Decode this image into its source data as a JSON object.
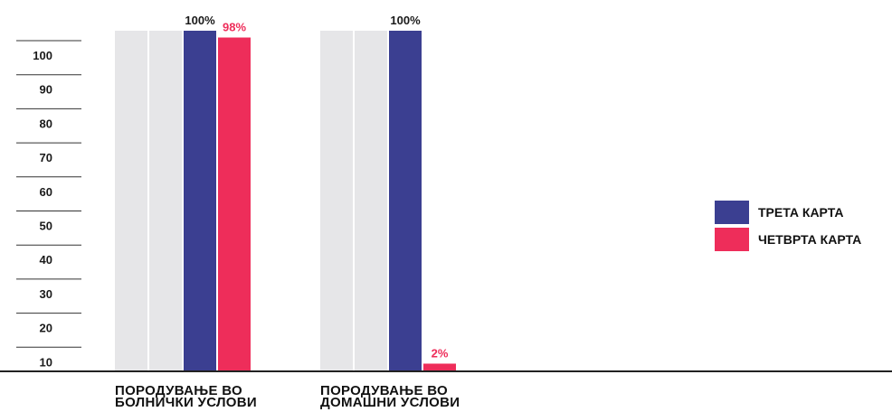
{
  "chart_data": {
    "type": "bar",
    "categories": [
      [
        "ПОРОДУВАЊЕ ВО",
        "БОЛНИЧКИ УСЛОВИ"
      ],
      [
        "ПОРОДУВАЊЕ ВО",
        "ДОМАШНИ УСЛОВИ"
      ]
    ],
    "series": [
      {
        "name": "ТРЕТА КАРТА",
        "color": "#3b3f91",
        "values": [
          100,
          100
        ],
        "labels": [
          "100%",
          "100%"
        ]
      },
      {
        "name": "ЧЕТВРТА КАРТА",
        "color": "#ee2d5a",
        "values": [
          98,
          2
        ],
        "labels": [
          "98%",
          "2%"
        ]
      }
    ],
    "ghost_bar_color": "#e6e6e8",
    "ghost_bars_per_group": 2,
    "yticks": [
      "10",
      "20",
      "30",
      "40",
      "50",
      "60",
      "70",
      "80",
      "90",
      "100"
    ],
    "ylim": [
      0,
      100
    ],
    "legend_placement": "right"
  }
}
